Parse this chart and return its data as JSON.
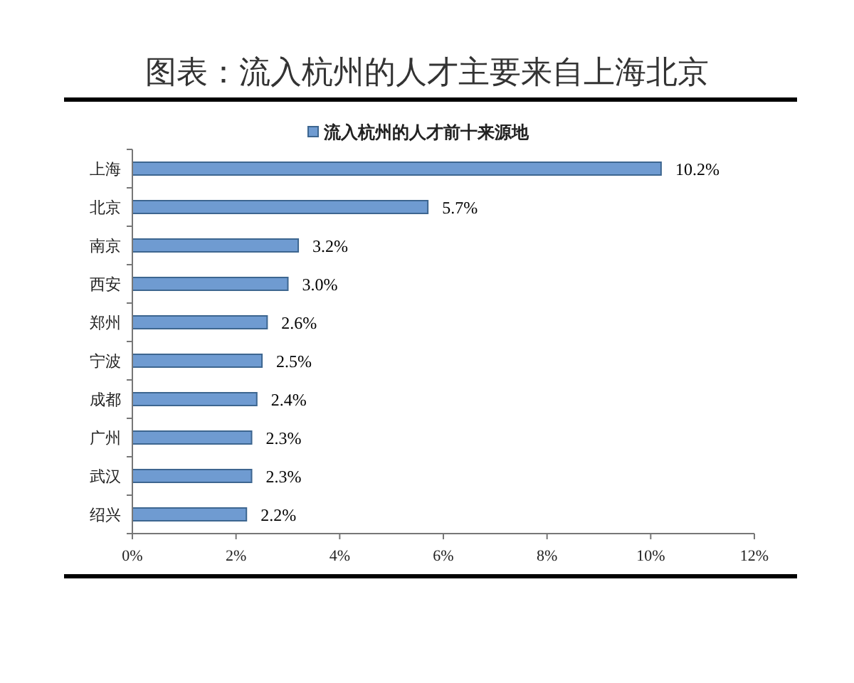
{
  "chart_data": {
    "type": "bar",
    "orientation": "horizontal",
    "title": "图表：流入杭州的人才主要来自上海北京",
    "categories": [
      "上海",
      "北京",
      "南京",
      "西安",
      "郑州",
      "宁波",
      "成都",
      "广州",
      "武汉",
      "绍兴"
    ],
    "series": [
      {
        "name": "流入杭州的人才前十来源地",
        "color": "#6f9bd1",
        "values": [
          10.2,
          5.7,
          3.2,
          3.0,
          2.6,
          2.5,
          2.4,
          2.3,
          2.3,
          2.2
        ],
        "value_labels": [
          "10.2%",
          "5.7%",
          "3.2%",
          "3.0%",
          "2.6%",
          "2.5%",
          "2.4%",
          "2.3%",
          "2.3%",
          "2.2%"
        ]
      }
    ],
    "xlim": [
      0,
      12
    ],
    "xticks": [
      {
        "value": 0,
        "label": "0%"
      },
      {
        "value": 2,
        "label": "2%"
      },
      {
        "value": 4,
        "label": "4%"
      },
      {
        "value": 6,
        "label": "6%"
      },
      {
        "value": 8,
        "label": "8%"
      },
      {
        "value": 10,
        "label": "10%"
      },
      {
        "value": 12,
        "label": "12%"
      }
    ],
    "legend": "top"
  }
}
